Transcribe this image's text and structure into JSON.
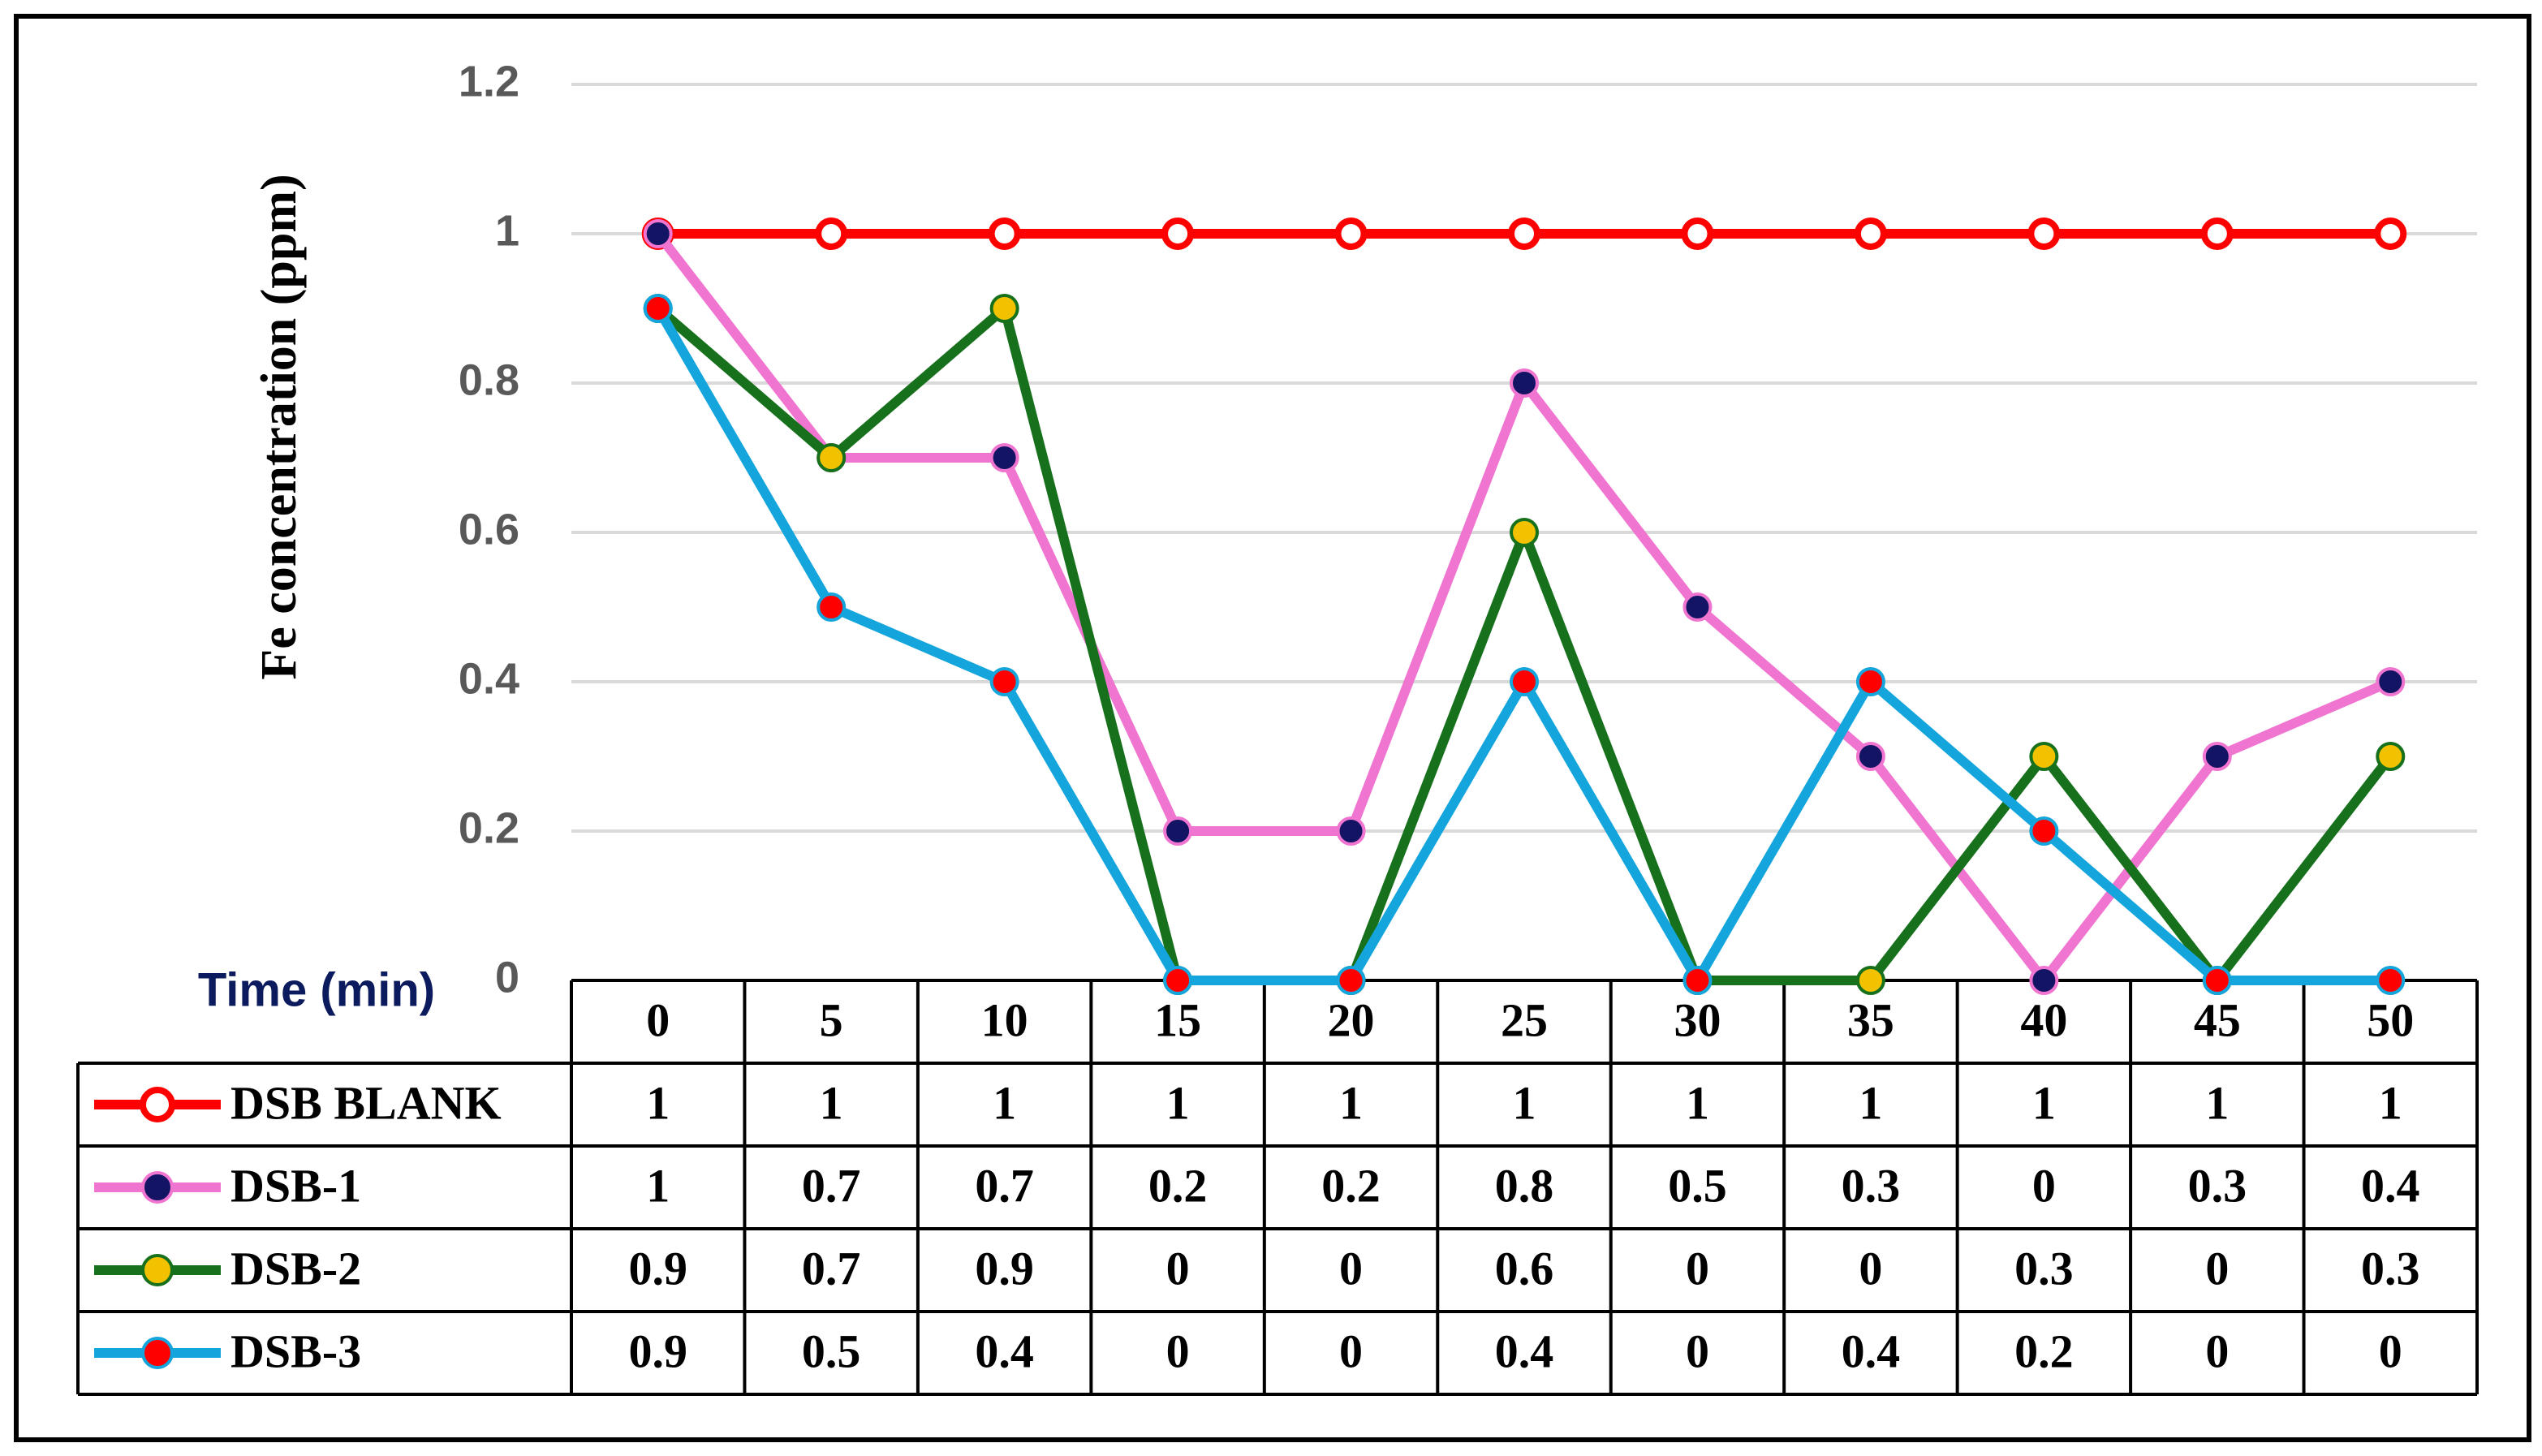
{
  "chart_data": {
    "type": "line",
    "y_label": "Fe concentration (ppm)",
    "x_label": "Time (min)",
    "x": [
      0,
      5,
      10,
      15,
      20,
      25,
      30,
      35,
      40,
      45,
      50
    ],
    "ylim": [
      0,
      1.2
    ],
    "yticks": [
      0,
      0.2,
      0.4,
      0.6,
      0.8,
      1,
      1.2
    ],
    "grid": true,
    "series": [
      {
        "name": "DSB BLANK",
        "color": "#ff0000",
        "marker_color": "#ffffff",
        "values": [
          1,
          1,
          1,
          1,
          1,
          1,
          1,
          1,
          1,
          1,
          1
        ]
      },
      {
        "name": "DSB-1",
        "color": "#f075d0",
        "marker_color": "#141464",
        "values": [
          1,
          0.7,
          0.7,
          0.2,
          0.2,
          0.8,
          0.5,
          0.3,
          0,
          0.3,
          0.4
        ]
      },
      {
        "name": "DSB-2",
        "color": "#16701c",
        "marker_color": "#f2c200",
        "values": [
          0.9,
          0.7,
          0.9,
          0,
          0,
          0.6,
          0,
          0,
          0.3,
          0,
          0.3
        ]
      },
      {
        "name": "DSB-3",
        "color": "#14a5dc",
        "marker_color": "#ff0000",
        "values": [
          0.9,
          0.5,
          0.4,
          0,
          0,
          0.4,
          0,
          0.4,
          0.2,
          0,
          0
        ]
      }
    ]
  }
}
